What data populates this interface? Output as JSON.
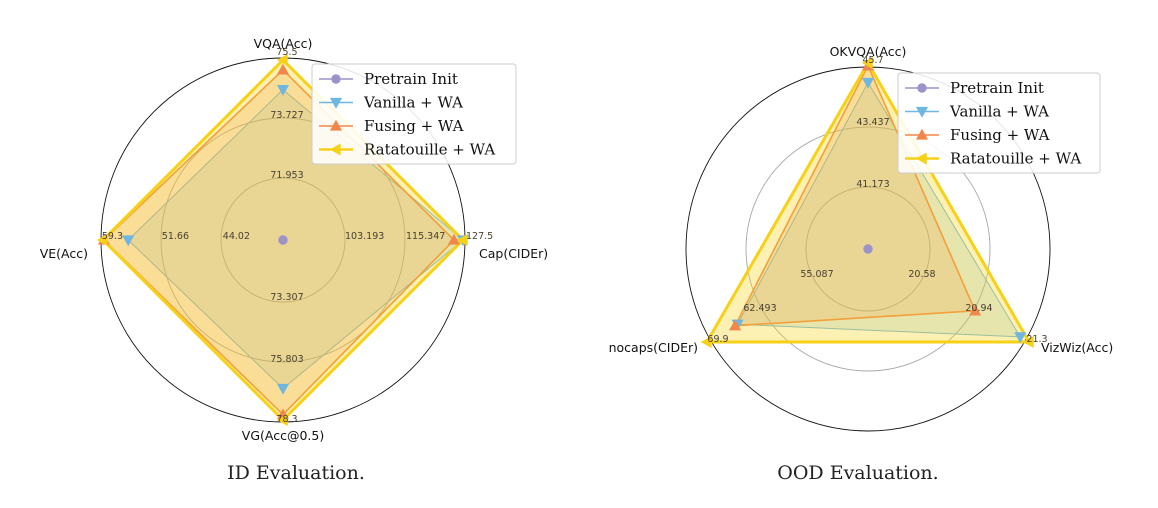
{
  "chart_data": [
    {
      "type": "radar",
      "caption": "ID Evaluation.",
      "axes": [
        "VQA(Acc)",
        "Cap(CIDEr)",
        "VG(Acc@0.5)",
        "VE(Acc)"
      ],
      "axis_ticks": [
        [
          "71.953",
          "73.727",
          "75.5"
        ],
        [
          "103.193",
          "115.347",
          "127.5"
        ],
        [
          "73.307",
          "75.803",
          "78.3"
        ],
        [
          "44.02",
          "51.66",
          "59.3"
        ]
      ],
      "series": [
        {
          "name": "Pretrain Init",
          "color": "#9c93c9",
          "marker": "circle",
          "values": [
            0,
            0,
            0,
            0
          ]
        },
        {
          "name": "Vanilla + WA",
          "color": "#6fb6e0",
          "marker": "triangle-down",
          "values": [
            0.835,
            1.0,
            0.825,
            0.86
          ]
        },
        {
          "name": "Fusing + WA",
          "color": "#f2874b",
          "marker": "triangle-up",
          "values": [
            0.945,
            0.95,
            0.97,
            0.995
          ]
        },
        {
          "name": "Ratatouille + WA",
          "color": "#f7d117",
          "marker": "triangle-left",
          "values": [
            1.0,
            1.0,
            1.0,
            1.0
          ]
        }
      ],
      "legend_position": "top-right",
      "grid": true
    },
    {
      "type": "radar",
      "caption": "OOD Evaluation.",
      "axes": [
        "OKVQA(Acc)",
        "VizWiz(Acc)",
        "nocaps(CIDEr)"
      ],
      "axis_ticks": [
        [
          "41.173",
          "43.437",
          "45.7"
        ],
        [
          "20.58",
          "20.94",
          "21.3"
        ],
        [
          "55.087",
          "62.493",
          "69.9"
        ]
      ],
      "series": [
        {
          "name": "Pretrain Init",
          "color": "#9c93c9",
          "marker": "circle",
          "values": [
            0,
            0,
            0
          ]
        },
        {
          "name": "Vanilla + WA",
          "color": "#6fb6e0",
          "marker": "triangle-down",
          "values": [
            0.895,
            0.945,
            0.81
          ]
        },
        {
          "name": "Fusing + WA",
          "color": "#f2874b",
          "marker": "triangle-up",
          "values": [
            0.985,
            0.665,
            0.825
          ]
        },
        {
          "name": "Ratatouille + WA",
          "color": "#f7d117",
          "marker": "triangle-left",
          "values": [
            1.0,
            1.0,
            1.0
          ]
        }
      ],
      "legend_position": "top-right",
      "grid": true
    }
  ]
}
